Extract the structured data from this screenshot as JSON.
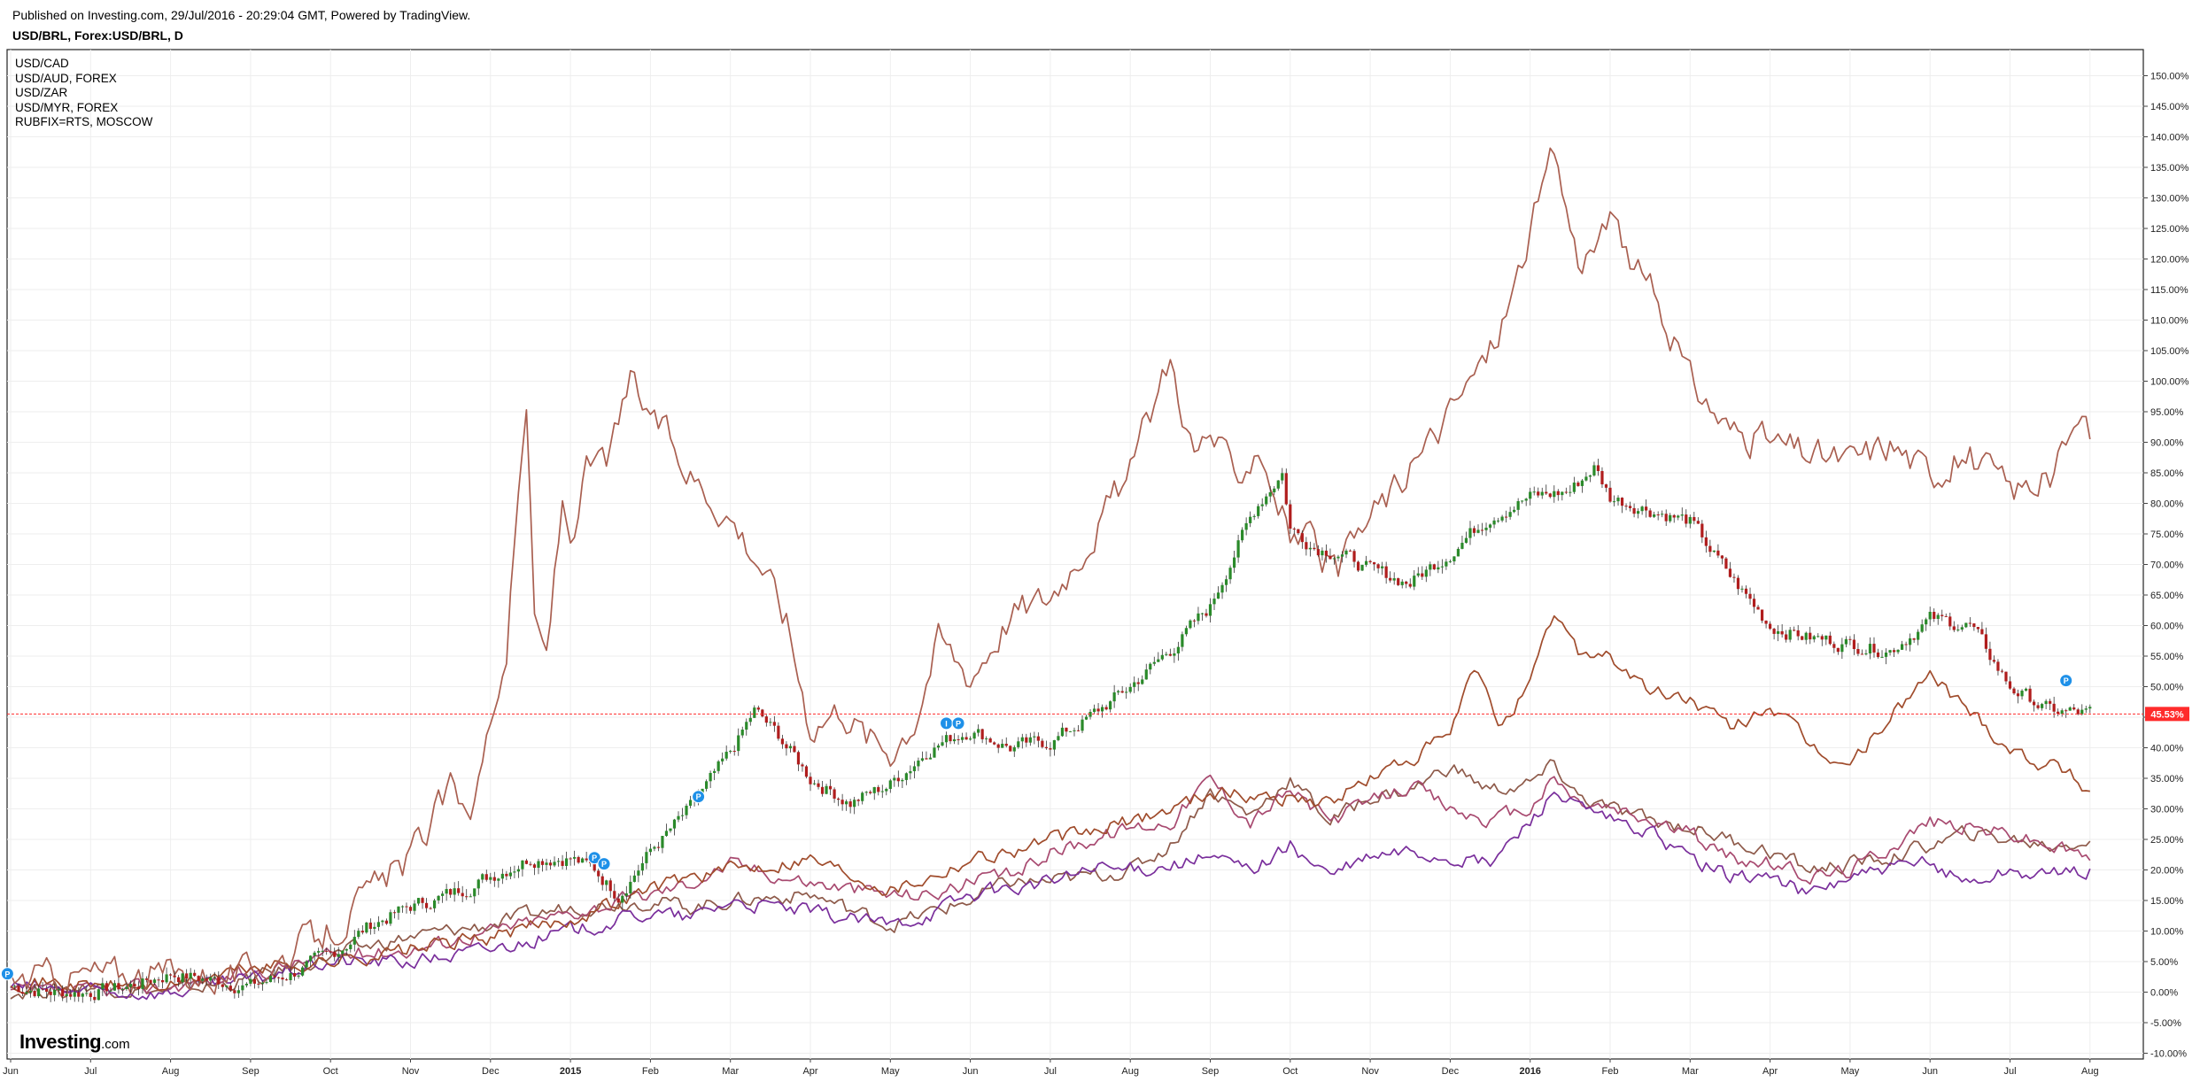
{
  "header": {
    "published": "Published on Investing.com, 29/Jul/2016 - 20:29:04 GMT, Powered by TradingView.",
    "symbol": "USD/BRL, Forex:USD/BRL, D"
  },
  "logo": {
    "brand": "Investing",
    "domain": ".com"
  },
  "colors": {
    "candle_up": "#2a8a2a",
    "candle_down": "#b01d1d",
    "usdcad": "#8e5a4a",
    "usdaud": "#a84a70",
    "usdzar": "#7a2f9c",
    "usdmyr": "#a04c2c",
    "rub": "#a95f50",
    "current_line": "#ff2b2b",
    "marker": "#1e90e8",
    "grid": "#eeeeee"
  },
  "chart_data": {
    "type": "line",
    "title": "USD/BRL, Forex:USD/BRL, D",
    "ylabel": "",
    "xlabel": "",
    "y_unit": "%",
    "ylim": [
      -11.5,
      153
    ],
    "grid": true,
    "legend_position": "top-left",
    "yticks": [
      "150.00%",
      "145.00%",
      "140.00%",
      "135.00%",
      "130.00%",
      "125.00%",
      "120.00%",
      "115.00%",
      "110.00%",
      "105.00%",
      "100.00%",
      "95.00%",
      "90.00%",
      "85.00%",
      "80.00%",
      "75.00%",
      "70.00%",
      "65.00%",
      "60.00%",
      "55.00%",
      "50.00%",
      "45.00%",
      "40.00%",
      "35.00%",
      "30.00%",
      "25.00%",
      "20.00%",
      "15.00%",
      "10.00%",
      "5.00%",
      "0.00%",
      "-5.00%",
      "-10.00%"
    ],
    "xticks": [
      {
        "label": "Jun",
        "month": 0
      },
      {
        "label": "Jul",
        "month": 1
      },
      {
        "label": "Aug",
        "month": 2
      },
      {
        "label": "Sep",
        "month": 3
      },
      {
        "label": "Oct",
        "month": 4
      },
      {
        "label": "Nov",
        "month": 5
      },
      {
        "label": "Dec",
        "month": 6
      },
      {
        "label": "2015",
        "month": 7,
        "bold": true
      },
      {
        "label": "Feb",
        "month": 8
      },
      {
        "label": "Mar",
        "month": 9
      },
      {
        "label": "Apr",
        "month": 10
      },
      {
        "label": "May",
        "month": 11
      },
      {
        "label": "Jun",
        "month": 12
      },
      {
        "label": "Jul",
        "month": 13
      },
      {
        "label": "Aug",
        "month": 14
      },
      {
        "label": "Sep",
        "month": 15
      },
      {
        "label": "Oct",
        "month": 16
      },
      {
        "label": "Nov",
        "month": 17
      },
      {
        "label": "Dec",
        "month": 18
      },
      {
        "label": "2016",
        "month": 19,
        "bold": true
      },
      {
        "label": "Feb",
        "month": 20
      },
      {
        "label": "Mar",
        "month": 21
      },
      {
        "label": "Apr",
        "month": 22
      },
      {
        "label": "May",
        "month": 23
      },
      {
        "label": "Jun",
        "month": 24
      },
      {
        "label": "Jul",
        "month": 25
      },
      {
        "label": "Aug",
        "month": 26
      }
    ],
    "current_value": {
      "label": "45.53%",
      "value": 45.53
    },
    "series": [
      {
        "name": "USD/BRL",
        "style": "candles",
        "x": [
          0,
          0.5,
          1,
          1.5,
          2,
          2.5,
          3,
          3.5,
          4,
          4.5,
          5,
          5.5,
          6,
          6.5,
          7,
          7.3,
          7.6,
          8,
          8.5,
          9,
          9.3,
          9.6,
          10,
          10.5,
          11,
          11.5,
          12,
          12.5,
          13,
          13.5,
          14,
          14.5,
          15,
          15.3,
          15.6,
          15.9,
          16,
          16.3,
          16.6,
          17,
          17.5,
          18,
          18.5,
          19,
          19.5,
          19.8,
          20,
          20.5,
          21,
          21.5,
          22,
          22.5,
          23,
          23.5,
          24,
          24.5,
          25,
          25.5,
          26
        ],
        "values": [
          1,
          0,
          0,
          1,
          3,
          2,
          1,
          3,
          6,
          11,
          14,
          16,
          19,
          22,
          22,
          20,
          16,
          23,
          30,
          39,
          46,
          42,
          35,
          31,
          34,
          40,
          43,
          40,
          41,
          45,
          50,
          56,
          63,
          72,
          80,
          85,
          76,
          73,
          72,
          69,
          67,
          72,
          78,
          81,
          82,
          86,
          81,
          79,
          77,
          68,
          60,
          58,
          57,
          56,
          61,
          60,
          50,
          46,
          45.53
        ]
      },
      {
        "name": "USD/CAD",
        "x": [
          0,
          1,
          2,
          3,
          4,
          5,
          6,
          7,
          8,
          8.5,
          9,
          10,
          11,
          11.5,
          12,
          12.5,
          13,
          13.5,
          14,
          14.5,
          15,
          15.5,
          16,
          16.5,
          17,
          17.5,
          18,
          18.5,
          19,
          19.3,
          19.6,
          20,
          20.5,
          21,
          21.5,
          22,
          22.5,
          23,
          23.5,
          24,
          24.5,
          25,
          25.5,
          26
        ],
        "values": [
          0,
          1,
          0,
          2,
          6,
          9,
          11,
          14,
          15,
          14,
          15,
          16,
          11,
          13,
          15,
          18,
          18,
          19,
          20,
          24,
          33,
          29,
          35,
          28,
          32,
          33,
          37,
          33,
          34,
          37,
          32,
          30,
          28,
          27,
          25,
          23,
          20,
          21,
          22,
          24,
          26,
          25,
          24,
          25
        ]
      },
      {
        "name": "USD/AUD, FOREX",
        "x": [
          0,
          1,
          2,
          3,
          4,
          5,
          6,
          7,
          8,
          8.5,
          9,
          10,
          11,
          11.5,
          12,
          12.5,
          13,
          13.5,
          14,
          14.5,
          15,
          15.5,
          16,
          16.5,
          17,
          17.5,
          18,
          18.5,
          19,
          19.3,
          19.6,
          20,
          20.5,
          21,
          21.5,
          22,
          22.5,
          23,
          23.5,
          24,
          24.5,
          25,
          25.5,
          26
        ],
        "values": [
          0,
          0,
          1,
          3,
          6,
          7,
          10,
          13,
          16,
          18,
          21,
          18,
          16,
          16,
          18,
          19,
          23,
          25,
          27,
          28,
          35,
          28,
          33,
          28,
          31,
          34,
          30,
          28,
          30,
          35,
          31,
          30,
          28,
          26,
          22,
          21,
          19,
          20,
          24,
          28,
          27,
          26,
          24,
          22
        ]
      },
      {
        "name": "USD/ZAR",
        "x": [
          0,
          1,
          2,
          3,
          4,
          5,
          6,
          7,
          8,
          8.5,
          9,
          10,
          11,
          11.5,
          12,
          12.5,
          13,
          13.5,
          14,
          14.5,
          15,
          15.5,
          16,
          16.5,
          17,
          17.5,
          18,
          18.5,
          19,
          19.3,
          19.6,
          20,
          20.5,
          21,
          21.5,
          22,
          22.5,
          23,
          23.5,
          24,
          24.5,
          25,
          25.5,
          26
        ],
        "values": [
          1,
          0,
          0,
          2,
          5,
          5,
          7,
          10,
          13,
          12,
          15,
          13,
          11,
          13,
          16,
          17,
          18,
          20,
          20,
          21,
          22,
          20,
          24,
          19,
          22,
          23,
          22,
          21,
          28,
          33,
          30,
          28,
          26,
          22,
          19,
          19,
          16,
          19,
          20,
          21,
          18,
          20,
          19,
          20
        ]
      },
      {
        "name": "USD/MYR, FOREX",
        "x": [
          0,
          1,
          2,
          3,
          4,
          5,
          6,
          7,
          8,
          8.5,
          9,
          10,
          11,
          11.5,
          12,
          12.5,
          13,
          13.5,
          14,
          14.5,
          15,
          15.5,
          16,
          16.5,
          17,
          17.5,
          18,
          18.3,
          18.6,
          19,
          19.3,
          19.6,
          20,
          20.5,
          21,
          21.5,
          22,
          22.5,
          23,
          23.5,
          24,
          24.5,
          25,
          25.3,
          25.6,
          26
        ],
        "values": [
          2,
          1,
          1,
          4,
          5,
          7,
          9,
          12,
          17,
          19,
          20,
          22,
          17,
          19,
          22,
          23,
          25,
          26,
          28,
          30,
          33,
          32,
          32,
          31,
          35,
          38,
          42,
          53,
          44,
          50,
          62,
          56,
          55,
          49,
          48,
          43,
          47,
          40,
          37,
          45,
          52,
          46,
          40,
          38,
          37,
          33
        ]
      },
      {
        "name": "RUBFIX=RTS, MOSCOW",
        "x": [
          0,
          1,
          2,
          3,
          4,
          5,
          5.5,
          5.8,
          6,
          6.2,
          6.45,
          6.55,
          6.7,
          6.9,
          7,
          7.2,
          7.5,
          7.75,
          7.85,
          8,
          8.5,
          9,
          9.4,
          9.7,
          10,
          10.4,
          10.7,
          11,
          11.3,
          11.6,
          12,
          12.5,
          13,
          13.5,
          14,
          14.5,
          14.8,
          15,
          15.3,
          15.6,
          16,
          16.3,
          16.6,
          17,
          17.5,
          18,
          18.5,
          18.8,
          19,
          19.3,
          19.6,
          20,
          20.5,
          21,
          21.5,
          22,
          22.5,
          23,
          23.5,
          24,
          24.5,
          25,
          25.5,
          25.8,
          26
        ],
        "values": [
          2,
          3,
          3,
          3,
          10,
          22,
          33,
          31,
          45,
          56,
          97,
          60,
          55,
          80,
          75,
          85,
          88,
          100,
          97,
          95,
          85,
          78,
          70,
          61,
          44,
          47,
          42,
          40,
          45,
          58,
          52,
          62,
          65,
          75,
          85,
          104,
          88,
          92,
          84,
          90,
          75,
          73,
          68,
          78,
          85,
          95,
          105,
          115,
          125,
          137,
          120,
          125,
          115,
          100,
          92,
          90,
          88,
          87,
          90,
          85,
          88,
          82,
          84,
          92,
          90
        ]
      }
    ],
    "markers": [
      {
        "label": "P",
        "month": -0.04,
        "value": 3
      },
      {
        "label": "P",
        "month": 7.3,
        "value": 22
      },
      {
        "label": "P",
        "month": 7.42,
        "value": 21
      },
      {
        "label": "P",
        "month": 8.6,
        "value": 32
      },
      {
        "label": "I",
        "month": 11.7,
        "value": 44
      },
      {
        "label": "P",
        "month": 11.85,
        "value": 44
      },
      {
        "label": "P",
        "month": 25.7,
        "value": 51
      }
    ]
  }
}
